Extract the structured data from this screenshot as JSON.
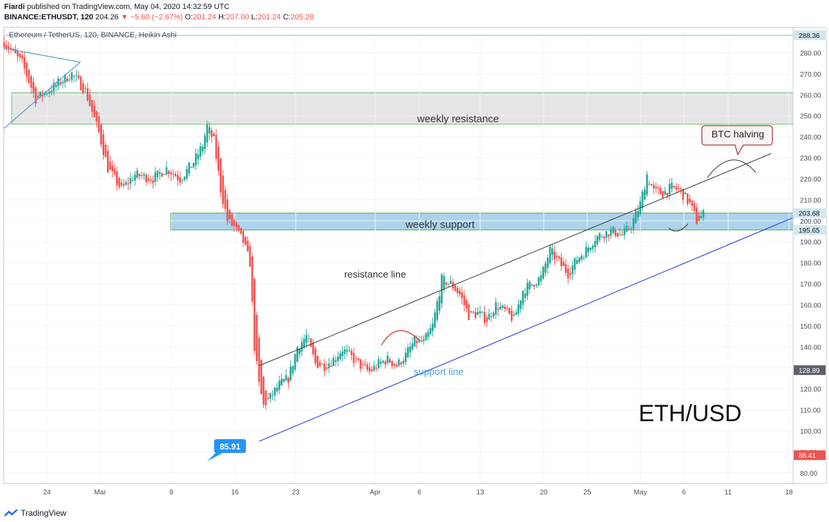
{
  "header": {
    "author": "Fiardi",
    "published": "published on TradingView.com, May 04, 2020 14:32:59 UTC",
    "symbol": "BINANCE:ETHUSDT, 120",
    "last": "204.26",
    "change": "▼ −5.60 (−2.67%)",
    "ohlc": {
      "o": "201.24",
      "h": "207.00",
      "l": "201.24",
      "c": "205.28"
    }
  },
  "legend": "Ethereum / TetherUS, 120, BINANCE, Heikin Ashi",
  "footer": {
    "brand": "TradingView"
  },
  "colors": {
    "up": "#26a69a",
    "down": "#ef5350",
    "support_zone": "#9ccbe7",
    "resistance_zone": "#e2e2e2"
  },
  "chart_data": {
    "type": "candlestick",
    "style": "Heikin Ashi",
    "ylim": [
      75,
      292
    ],
    "y_ticks": [
      80,
      90,
      100,
      110,
      120,
      130,
      140,
      150,
      160,
      170,
      180,
      190,
      200,
      210,
      220,
      230,
      240,
      250,
      260,
      270,
      280
    ],
    "x_ticks": [
      "24",
      "Mar",
      "9",
      "16",
      "23",
      "Apr",
      "6",
      "13",
      "20",
      "25",
      "May",
      "6",
      "11",
      "18"
    ],
    "price_labels": [
      {
        "text": "288.36",
        "value": 288.36,
        "color": "#d2e7ee"
      },
      {
        "text": "203.68",
        "value": 203.68,
        "color": "#d2e7ee"
      },
      {
        "text": "195.65",
        "value": 195.65,
        "color": "#d2e7ee"
      },
      {
        "text": "128.89",
        "value": 128.89,
        "color": "#5d606b"
      },
      {
        "text": "88.41",
        "value": 88.41,
        "color": "#ef5350"
      }
    ],
    "price_path": [
      [
        0,
        285
      ],
      [
        4,
        275
      ],
      [
        7,
        258
      ],
      [
        11,
        264
      ],
      [
        15,
        270
      ],
      [
        18,
        262
      ],
      [
        21,
        242
      ],
      [
        23,
        225
      ],
      [
        26,
        215
      ],
      [
        29,
        222
      ],
      [
        33,
        220
      ],
      [
        36,
        225
      ],
      [
        39,
        220
      ],
      [
        42,
        228
      ],
      [
        44,
        236
      ],
      [
        45,
        245
      ],
      [
        46.5,
        238
      ],
      [
        48,
        215
      ],
      [
        49.5,
        200
      ],
      [
        51,
        197
      ],
      [
        53,
        190
      ],
      [
        54.5,
        180
      ],
      [
        55.5,
        140
      ],
      [
        56.5,
        122
      ],
      [
        57.5,
        112
      ],
      [
        59,
        116
      ],
      [
        61,
        122
      ],
      [
        63,
        125
      ],
      [
        65,
        140
      ],
      [
        67,
        145
      ],
      [
        69,
        132
      ],
      [
        71,
        131
      ],
      [
        73,
        134
      ],
      [
        75,
        139
      ],
      [
        77,
        135
      ],
      [
        79,
        131
      ],
      [
        81,
        128
      ],
      [
        83,
        132
      ],
      [
        85,
        134
      ],
      [
        87,
        131
      ],
      [
        89,
        136
      ],
      [
        91,
        143
      ],
      [
        93,
        142
      ],
      [
        95,
        150
      ],
      [
        97,
        172
      ],
      [
        99,
        170
      ],
      [
        101,
        165
      ],
      [
        103,
        155
      ],
      [
        105,
        156
      ],
      [
        107,
        153
      ],
      [
        109,
        160
      ],
      [
        111,
        157
      ],
      [
        113,
        153
      ],
      [
        115,
        167
      ],
      [
        117,
        170
      ],
      [
        119,
        173
      ],
      [
        121,
        186
      ],
      [
        123,
        180
      ],
      [
        125,
        175
      ],
      [
        127,
        182
      ],
      [
        129,
        186
      ],
      [
        131,
        192
      ],
      [
        133,
        194
      ],
      [
        135,
        195
      ],
      [
        137,
        193
      ],
      [
        139,
        198
      ],
      [
        141,
        208
      ],
      [
        142.5,
        222
      ],
      [
        144,
        214
      ],
      [
        146,
        213
      ],
      [
        148,
        216
      ],
      [
        150,
        214
      ],
      [
        152,
        208
      ],
      [
        153.5,
        200
      ],
      [
        155,
        203
      ]
    ],
    "min_marker": {
      "text": "85.91",
      "value": 85.91
    },
    "zones": [
      {
        "name": "weekly resistance",
        "low": 246,
        "high": 261
      },
      {
        "name": "weekly support",
        "low": 195.65,
        "high": 203.68
      }
    ],
    "lines": [
      {
        "name": "resistance line",
        "from": [
          56.5,
          131
        ],
        "to": [
          170,
          232
        ]
      },
      {
        "name": "support line",
        "from": [
          56.5,
          95
        ],
        "to": [
          181,
          207
        ]
      }
    ],
    "annotations": [
      "weekly resistance",
      "weekly support",
      "resistance line",
      "support line",
      "BTC halving",
      "ETH/USD"
    ]
  }
}
